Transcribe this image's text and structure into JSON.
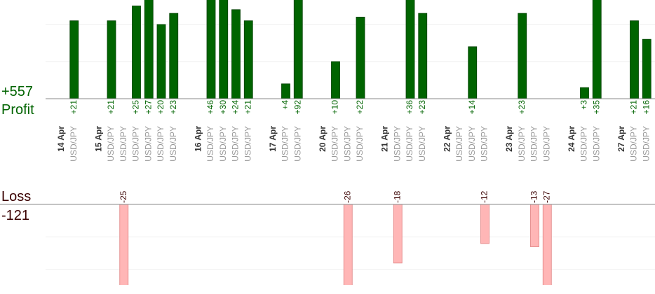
{
  "chart_data": {
    "type": "profit-loss",
    "profit_title": "Profit",
    "profit_total": {
      "value": 557,
      "label": "+557"
    },
    "loss_title": "Loss",
    "loss_total": -121,
    "ylim": [
      0,
      26.6
    ],
    "yticks": [
      10,
      20
    ],
    "y2lim": [
      -24.7,
      0
    ],
    "y2ticks": [
      -10,
      -20
    ],
    "profit_color": "#006400",
    "loss_color": "#ffb6b6",
    "grid": true,
    "groups": [
      {
        "date": "14 Apr",
        "trades": [
          {
            "pair": "USD/JPY",
            "profit": 21,
            "profit_label": "+21"
          }
        ]
      },
      {
        "date": "15 Apr",
        "trades": [
          {
            "pair": "USD/JPY",
            "profit": 21,
            "profit_label": "+21"
          },
          {
            "pair": "USD/JPY",
            "loss": -25
          },
          {
            "pair": "USD/JPY",
            "profit": 25,
            "profit_label": "+25"
          },
          {
            "pair": "USD/JPY",
            "profit": 27,
            "profit_label": "+27"
          },
          {
            "pair": "USD/JPY",
            "profit": 20,
            "profit_label": "+20"
          },
          {
            "pair": "USD/JPY",
            "profit": 23,
            "profit_label": "+23"
          }
        ]
      },
      {
        "date": "16 Apr",
        "trades": [
          {
            "pair": "USD/JPY",
            "profit": 46,
            "profit_label": "+46"
          },
          {
            "pair": "USD/JPY",
            "profit": 30,
            "profit_label": "+30"
          },
          {
            "pair": "USD/JPY",
            "profit": 24,
            "profit_label": "+24"
          },
          {
            "pair": "USD/JPY",
            "profit": 21,
            "profit_label": "+21"
          }
        ]
      },
      {
        "date": "17 Apr",
        "trades": [
          {
            "pair": "USD/JPY",
            "profit": 4,
            "profit_label": "+4"
          },
          {
            "pair": "USD/JPY",
            "profit": 92,
            "profit_label": "+92"
          }
        ]
      },
      {
        "date": "20 Apr",
        "trades": [
          {
            "pair": "USD/JPY",
            "profit": 10,
            "profit_label": "+10"
          },
          {
            "pair": "USD/JPY",
            "loss": -26
          },
          {
            "pair": "USD/JPY",
            "profit": 22,
            "profit_label": "+22"
          }
        ]
      },
      {
        "date": "21 Apr",
        "trades": [
          {
            "pair": "USD/JPY",
            "loss": -18
          },
          {
            "pair": "USD/JPY",
            "profit": 36,
            "profit_label": "+36"
          },
          {
            "pair": "USD/JPY",
            "profit": 23,
            "profit_label": "+23"
          }
        ]
      },
      {
        "date": "22 Apr",
        "trades": [
          {
            "pair": "USD/JPY"
          },
          {
            "pair": "USD/JPY",
            "profit": 14,
            "profit_label": "+14"
          },
          {
            "pair": "USD/JPY",
            "loss": -12
          }
        ]
      },
      {
        "date": "23 Apr",
        "trades": [
          {
            "pair": "USD/JPY",
            "profit": 23,
            "profit_label": "+23"
          },
          {
            "pair": "USD/JPY",
            "loss": -13
          },
          {
            "pair": "USD/JPY",
            "loss": -27
          }
        ]
      },
      {
        "date": "24 Apr",
        "trades": [
          {
            "pair": "USD/JPY",
            "profit": 3,
            "profit_label": "+3"
          },
          {
            "pair": "USD/JPY",
            "profit": 35,
            "profit_label": "+35"
          }
        ]
      },
      {
        "date": "27 Apr",
        "trades": [
          {
            "pair": "USD/JPY",
            "profit": 21,
            "profit_label": "+21"
          },
          {
            "pair": "USD/JPY",
            "profit": 16,
            "profit_label": "+16"
          }
        ]
      }
    ]
  }
}
